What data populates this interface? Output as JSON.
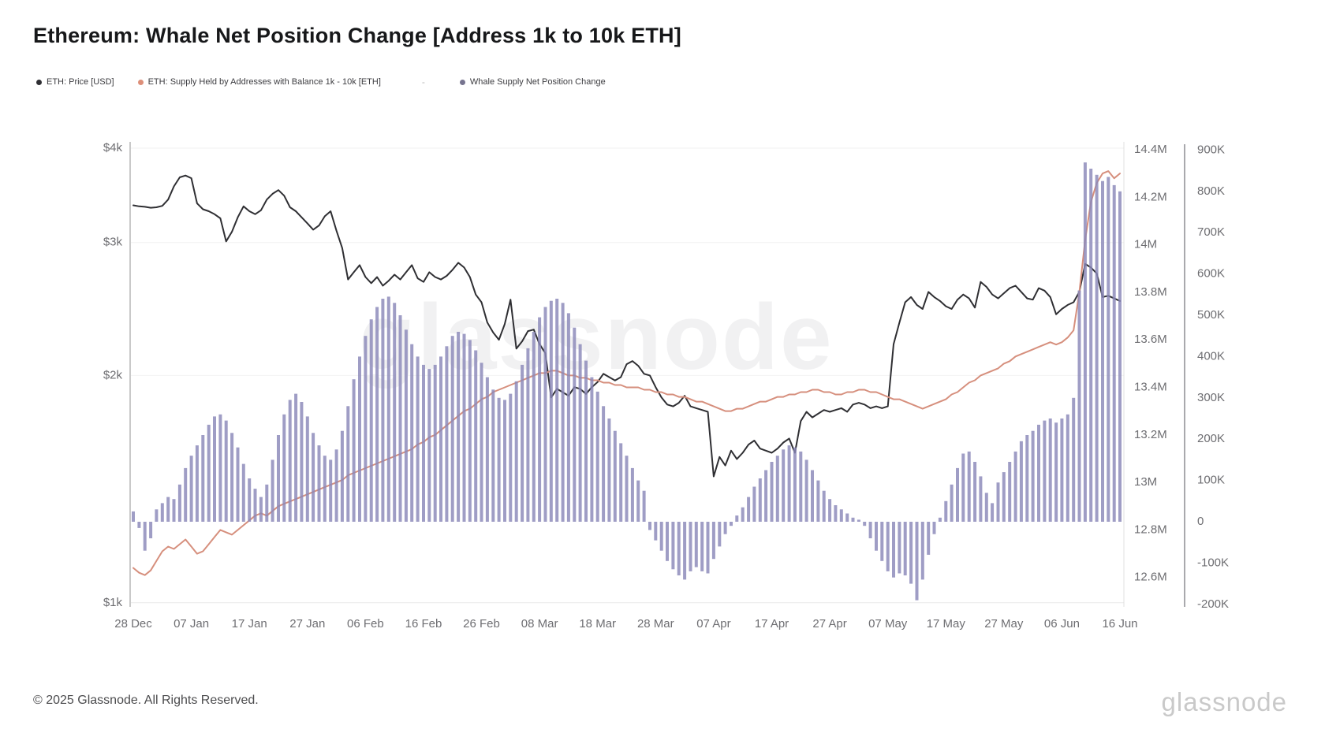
{
  "header": {
    "title": "Ethereum: Whale Net Position Change [Address 1k to 10k ETH]"
  },
  "legend": {
    "separator": "-",
    "items": [
      {
        "label": "ETH: Price [USD]",
        "color": "#2f2f33"
      },
      {
        "label": "ETH: Supply Held by Addresses with Balance 1k - 10k [ETH]",
        "color": "#dd8f79"
      },
      {
        "label": "Whale Supply Net Position Change",
        "color": "#76748f"
      }
    ]
  },
  "watermark": "glassnode",
  "footer": {
    "copyright": "© 2025 Glassnode. All Rights Reserved.",
    "brand": "glassnode"
  },
  "chart_data": {
    "type": "mixed",
    "title": "Ethereum: Whale Net Position Change [Address 1k to 10k ETH]",
    "x_tick_labels": [
      "28 Dec",
      "07 Jan",
      "17 Jan",
      "27 Jan",
      "06 Feb",
      "16 Feb",
      "26 Feb",
      "08 Mar",
      "18 Mar",
      "28 Mar",
      "07 Apr",
      "17 Apr",
      "27 Apr",
      "07 May",
      "17 May",
      "27 May",
      "06 Jun",
      "16 Jun"
    ],
    "x_tick_day_indices": [
      0,
      10,
      20,
      30,
      40,
      50,
      60,
      70,
      80,
      90,
      100,
      110,
      120,
      130,
      140,
      150,
      160,
      170
    ],
    "days_total": 171,
    "grid": "horizontal-faint",
    "legend_position": "top-left",
    "axes": {
      "price": {
        "side": "left",
        "scale": "log",
        "ticks": [
          "$4k",
          "$3k",
          "$2k",
          "$1k"
        ],
        "tick_values": [
          4000,
          3000,
          2000,
          1000
        ],
        "domain": [
          1000,
          4000
        ]
      },
      "supply": {
        "side": "right-inner",
        "scale": "linear",
        "ticks": [
          "14.4M",
          "14.2M",
          "14M",
          "13.8M",
          "13.6M",
          "13.4M",
          "13.2M",
          "13M",
          "12.8M",
          "12.6M"
        ],
        "tick_values": [
          14.4,
          14.2,
          14.0,
          13.8,
          13.6,
          13.4,
          13.2,
          13.0,
          12.8,
          12.6
        ],
        "domain": [
          12.6,
          14.4
        ]
      },
      "npc": {
        "side": "right-outer",
        "scale": "linear",
        "ticks": [
          "900K",
          "800K",
          "700K",
          "600K",
          "500K",
          "400K",
          "300K",
          "200K",
          "100K",
          "0",
          "-100K",
          "-200K"
        ],
        "tick_values": [
          900,
          800,
          700,
          600,
          500,
          400,
          300,
          200,
          100,
          0,
          -100,
          -200
        ],
        "domain": [
          -200,
          900
        ]
      }
    },
    "series": [
      {
        "name": "ETH: Price [USD]",
        "type": "line",
        "axis": "price",
        "color": "#2f2f33",
        "values": [
          3360,
          3350,
          3345,
          3335,
          3340,
          3355,
          3420,
          3560,
          3660,
          3680,
          3650,
          3380,
          3320,
          3300,
          3270,
          3230,
          3010,
          3100,
          3240,
          3350,
          3300,
          3270,
          3310,
          3420,
          3480,
          3520,
          3460,
          3340,
          3300,
          3240,
          3180,
          3120,
          3160,
          3250,
          3300,
          3110,
          2950,
          2680,
          2740,
          2800,
          2700,
          2650,
          2700,
          2630,
          2670,
          2720,
          2680,
          2740,
          2800,
          2690,
          2660,
          2740,
          2700,
          2680,
          2710,
          2760,
          2820,
          2780,
          2700,
          2560,
          2500,
          2350,
          2280,
          2230,
          2340,
          2520,
          2170,
          2220,
          2290,
          2300,
          2200,
          2140,
          1870,
          1920,
          1900,
          1880,
          1930,
          1920,
          1890,
          1930,
          1960,
          2010,
          1990,
          1970,
          1990,
          2070,
          2090,
          2060,
          2010,
          2000,
          1930,
          1870,
          1830,
          1820,
          1840,
          1880,
          1820,
          1810,
          1800,
          1790,
          1470,
          1560,
          1520,
          1590,
          1550,
          1580,
          1620,
          1640,
          1600,
          1590,
          1580,
          1600,
          1630,
          1650,
          1580,
          1740,
          1790,
          1760,
          1780,
          1800,
          1790,
          1800,
          1810,
          1790,
          1830,
          1840,
          1830,
          1810,
          1820,
          1810,
          1820,
          2200,
          2350,
          2500,
          2540,
          2480,
          2450,
          2580,
          2540,
          2510,
          2470,
          2450,
          2520,
          2560,
          2530,
          2460,
          2660,
          2620,
          2560,
          2530,
          2570,
          2610,
          2630,
          2580,
          2530,
          2520,
          2610,
          2590,
          2540,
          2410,
          2450,
          2480,
          2500,
          2580,
          2810,
          2780,
          2730,
          2540,
          2550,
          2530,
          2510
        ]
      },
      {
        "name": "ETH: Supply Held by Addresses with Balance 1k - 10k [ETH]",
        "type": "line",
        "axis": "supply",
        "color": "#d68f7d",
        "values": [
          12.64,
          12.62,
          12.61,
          12.63,
          12.67,
          12.71,
          12.73,
          12.72,
          12.74,
          12.76,
          12.73,
          12.7,
          12.71,
          12.74,
          12.77,
          12.8,
          12.79,
          12.78,
          12.8,
          12.82,
          12.84,
          12.86,
          12.87,
          12.86,
          12.88,
          12.9,
          12.91,
          12.92,
          12.93,
          12.94,
          12.95,
          12.96,
          12.97,
          12.98,
          12.99,
          13.0,
          13.01,
          13.03,
          13.04,
          13.05,
          13.06,
          13.07,
          13.08,
          13.09,
          13.1,
          13.11,
          13.12,
          13.13,
          13.14,
          13.16,
          13.17,
          13.19,
          13.2,
          13.22,
          13.24,
          13.26,
          13.28,
          13.3,
          13.31,
          13.33,
          13.35,
          13.36,
          13.38,
          13.39,
          13.4,
          13.41,
          13.42,
          13.43,
          13.44,
          13.45,
          13.46,
          13.46,
          13.47,
          13.47,
          13.46,
          13.45,
          13.45,
          13.44,
          13.44,
          13.43,
          13.43,
          13.42,
          13.42,
          13.41,
          13.41,
          13.4,
          13.4,
          13.4,
          13.39,
          13.39,
          13.38,
          13.38,
          13.37,
          13.37,
          13.36,
          13.36,
          13.35,
          13.34,
          13.34,
          13.33,
          13.32,
          13.31,
          13.3,
          13.3,
          13.31,
          13.31,
          13.32,
          13.33,
          13.34,
          13.34,
          13.35,
          13.36,
          13.36,
          13.37,
          13.37,
          13.38,
          13.38,
          13.39,
          13.39,
          13.38,
          13.38,
          13.37,
          13.37,
          13.38,
          13.38,
          13.39,
          13.39,
          13.38,
          13.38,
          13.37,
          13.36,
          13.35,
          13.35,
          13.34,
          13.33,
          13.32,
          13.31,
          13.32,
          13.33,
          13.34,
          13.35,
          13.37,
          13.38,
          13.4,
          13.42,
          13.43,
          13.45,
          13.46,
          13.47,
          13.48,
          13.5,
          13.51,
          13.53,
          13.54,
          13.55,
          13.56,
          13.57,
          13.58,
          13.59,
          13.58,
          13.59,
          13.61,
          13.64,
          13.8,
          14.02,
          14.18,
          14.26,
          14.3,
          14.31,
          14.28,
          14.3
        ]
      },
      {
        "name": "Whale Supply Net Position Change",
        "type": "bar",
        "axis": "npc",
        "color": "#8a88b8",
        "values": [
          25,
          -15,
          -70,
          -40,
          30,
          45,
          60,
          55,
          90,
          130,
          160,
          185,
          210,
          235,
          255,
          260,
          245,
          215,
          180,
          140,
          105,
          80,
          60,
          90,
          150,
          210,
          260,
          295,
          310,
          290,
          255,
          215,
          185,
          160,
          150,
          175,
          220,
          280,
          345,
          400,
          450,
          490,
          520,
          540,
          545,
          530,
          500,
          465,
          430,
          400,
          380,
          370,
          380,
          400,
          425,
          450,
          460,
          455,
          440,
          415,
          385,
          350,
          320,
          300,
          295,
          310,
          340,
          380,
          420,
          460,
          495,
          520,
          535,
          540,
          530,
          505,
          470,
          430,
          390,
          350,
          315,
          280,
          250,
          220,
          190,
          160,
          130,
          100,
          75,
          -20,
          -45,
          -70,
          -95,
          -115,
          -130,
          -140,
          -120,
          -110,
          -120,
          -125,
          -90,
          -60,
          -30,
          -10,
          15,
          35,
          60,
          85,
          105,
          125,
          145,
          160,
          175,
          185,
          180,
          170,
          150,
          125,
          100,
          75,
          55,
          40,
          30,
          20,
          10,
          5,
          -10,
          -40,
          -70,
          -95,
          -120,
          -135,
          -125,
          -130,
          -150,
          -190,
          -140,
          -80,
          -30,
          10,
          50,
          90,
          130,
          165,
          170,
          145,
          110,
          70,
          45,
          95,
          120,
          145,
          170,
          195,
          210,
          220,
          235,
          245,
          250,
          240,
          250,
          260,
          300,
          560,
          870,
          855,
          840,
          825,
          835,
          815,
          800
        ]
      }
    ]
  }
}
